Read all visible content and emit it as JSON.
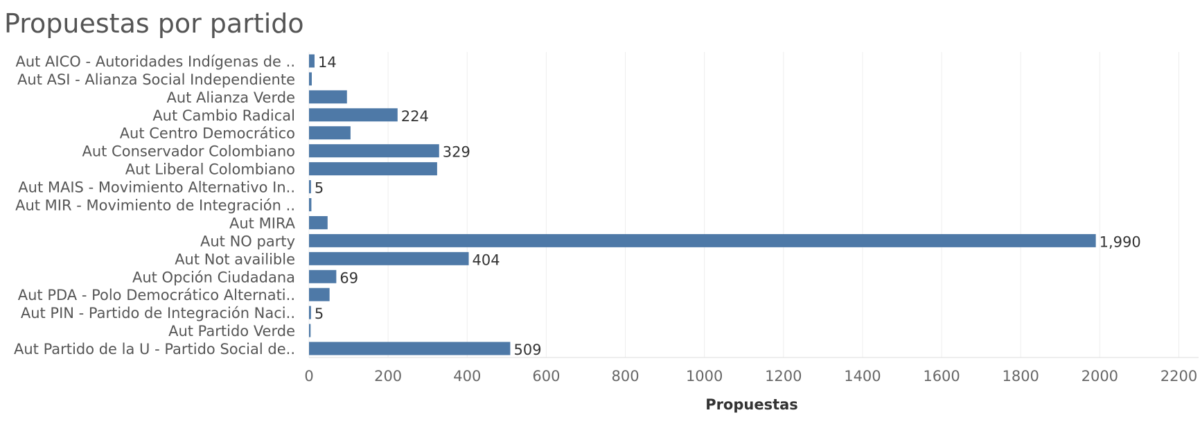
{
  "chart_data": {
    "type": "bar",
    "orientation": "horizontal",
    "title": "Propuestas por partido",
    "xlabel": "Propuestas",
    "ylabel": "",
    "xlim": [
      0,
      2250
    ],
    "xticks": [
      0,
      200,
      400,
      600,
      800,
      1000,
      1200,
      1400,
      1600,
      1800,
      2000,
      2200
    ],
    "grid": true,
    "bar_color": "#4e79a7",
    "categories": [
      "Aut AICO - Autoridades Indígenas de ..",
      "Aut ASI - Alianza Social Independiente",
      "Aut Alianza Verde",
      "Aut Cambio Radical",
      "Aut Centro Democrático",
      "Aut Conservador Colombiano",
      "Aut Liberal Colombiano",
      "Aut MAIS - Movimiento Alternativo In..",
      "Aut MIR - Movimiento de Integración ..",
      "Aut MIRA",
      "Aut NO party",
      "Aut Not availible",
      "Aut Opción Ciudadana",
      "Aut PDA - Polo Democrático Alternati..",
      "Aut PIN - Partido de Integración Naci..",
      "Aut Partido Verde",
      "Aut Partido de la U - Partido Social de.."
    ],
    "values": [
      14,
      7,
      96,
      224,
      105,
      329,
      324,
      5,
      6,
      47,
      1990,
      404,
      69,
      52,
      5,
      4,
      509
    ],
    "data_labels": [
      "14",
      "",
      "",
      "224",
      "",
      "329",
      "",
      "5",
      "",
      "",
      "1,990",
      "404",
      "69",
      "",
      "5",
      "",
      "509"
    ]
  }
}
